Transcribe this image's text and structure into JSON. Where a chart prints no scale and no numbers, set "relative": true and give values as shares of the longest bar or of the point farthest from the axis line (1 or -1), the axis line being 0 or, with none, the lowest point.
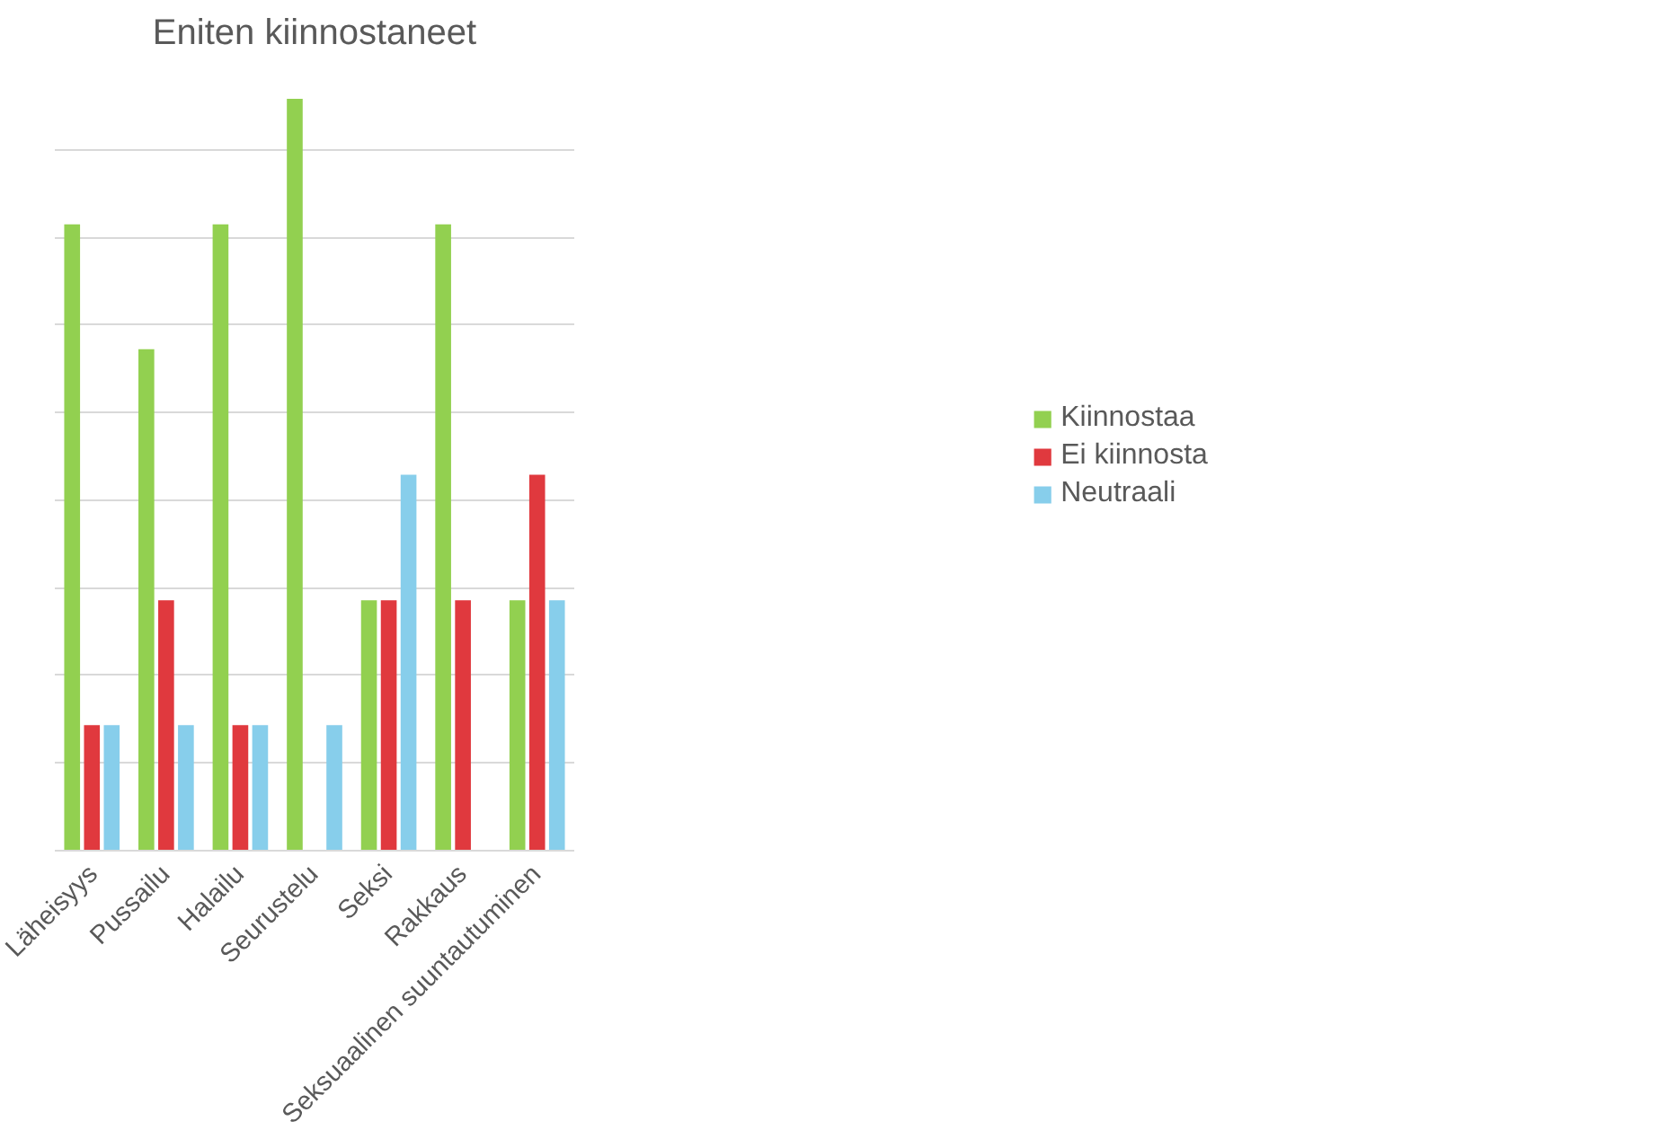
{
  "chart_data": {
    "type": "bar",
    "title": "Eniten kiinnostaneet",
    "relative": true,
    "categories": [
      "Läheisyys",
      "Pussailu",
      "Halailu",
      "Seurustelu",
      "Seksi",
      "Rakkaus",
      "Seksuaalinen suuntautuminen"
    ],
    "series": [
      {
        "name": "Kiinnostaa",
        "color": "#92d050",
        "values": [
          0.833,
          0.667,
          0.833,
          1,
          0.333,
          0.833,
          0.333
        ]
      },
      {
        "name": "Ei kiinnosta",
        "color": "#e0393e",
        "values": [
          0.167,
          0.333,
          0.167,
          0,
          0.333,
          0.333,
          0.5
        ]
      },
      {
        "name": "Neutraali",
        "color": "#87ceeb",
        "values": [
          0.167,
          0.167,
          0.167,
          0.167,
          0.5,
          0,
          0.333
        ]
      }
    ],
    "grid": "y",
    "legend": "right"
  }
}
